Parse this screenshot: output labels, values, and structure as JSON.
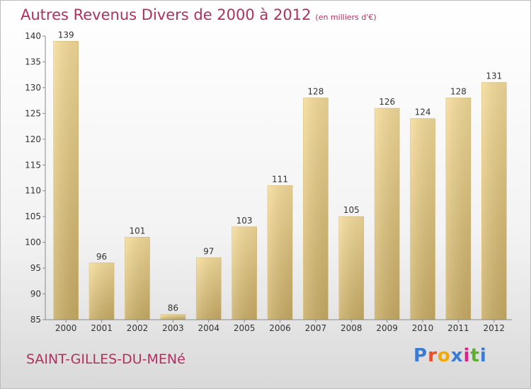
{
  "chart_data": {
    "type": "bar",
    "title": "Autres Revenus Divers de 2000 à 2012",
    "unit_label": "(en milliers d'€)",
    "categories": [
      "2000",
      "2001",
      "2002",
      "2003",
      "2004",
      "2005",
      "2006",
      "2007",
      "2008",
      "2009",
      "2010",
      "2011",
      "2012"
    ],
    "values": [
      139,
      96,
      101,
      86,
      97,
      103,
      111,
      128,
      105,
      126,
      124,
      128,
      131
    ],
    "ylim": [
      85,
      140
    ],
    "yticks": [
      85,
      90,
      95,
      100,
      105,
      110,
      115,
      120,
      125,
      130,
      135,
      140
    ],
    "grid": false,
    "legend": "none",
    "bar_color": "#e8c97e"
  },
  "footer": {
    "place_name": "SAINT-GILLES-DU-MENé",
    "brand": {
      "text": "Proxiti",
      "letter_colors": [
        "#3a7bd5",
        "#e8502a",
        "#f2a900",
        "#3a7bd5",
        "#e0218a",
        "#5cb030",
        "#3a7bd5"
      ]
    }
  },
  "colors": {
    "title": "#b0305e",
    "axis": "#888888",
    "tick_label": "#333333"
  }
}
